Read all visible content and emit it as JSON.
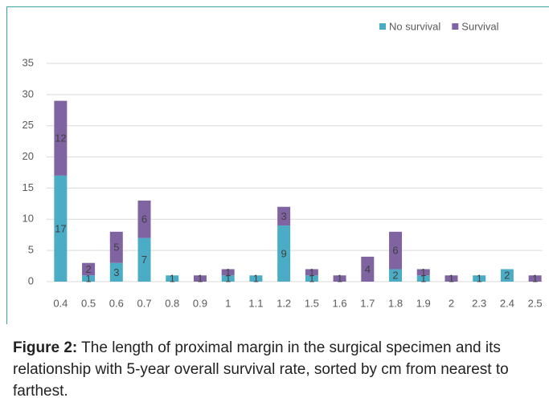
{
  "chart_data": {
    "type": "stacked_bar",
    "categories": [
      "0.4",
      "0.5",
      "0.6",
      "0.7",
      "0.8",
      "0.9",
      "1",
      "1.1",
      "1.2",
      "1.5",
      "1.6",
      "1.7",
      "1.8",
      "1.9",
      "2",
      "2.3",
      "2.4",
      "2.5"
    ],
    "series": [
      {
        "name": "No survival",
        "color": "#4bacc6",
        "values": [
          17,
          1,
          3,
          7,
          1,
          0,
          1,
          1,
          9,
          1,
          0,
          0,
          2,
          1,
          0,
          1,
          2,
          0
        ]
      },
      {
        "name": "Survival",
        "color": "#8064a2",
        "values": [
          12,
          2,
          5,
          6,
          0,
          1,
          1,
          0,
          3,
          1,
          1,
          4,
          6,
          1,
          1,
          0,
          0,
          1
        ]
      }
    ],
    "ylim": [
      0,
      35
    ],
    "yticks": [
      0,
      5,
      10,
      15,
      20,
      25,
      30,
      35
    ],
    "grid": true,
    "legend": "top-right"
  },
  "caption": {
    "label": "Figure 2:",
    "text": "The length of proximal margin in the surgical specimen and its relationship with 5-year overall survival rate, sorted by cm from nearest to farthest."
  }
}
